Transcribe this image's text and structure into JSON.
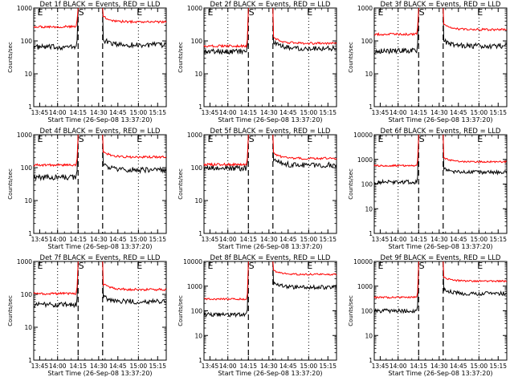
{
  "chart_data": [
    {
      "type": "line",
      "title": "Det 1f BLACK = Events, RED = LLD",
      "xlabel": "Start Time (26-Sep-08 13:37:20)",
      "ylabel": "Counts/sec",
      "yscale": "log",
      "ylim": [
        1,
        1000
      ],
      "yticks": [
        "1",
        "10",
        "100",
        "1000"
      ],
      "xticks": [
        "13:45",
        "14:00",
        "14:15",
        "14:30",
        "14:45",
        "15:00",
        "15:15"
      ],
      "markers": [
        "E",
        "S",
        "E"
      ],
      "series": [
        {
          "name": "Events",
          "color": "#000000",
          "pre": 65,
          "post": 75
        },
        {
          "name": "LLD",
          "color": "#ff0000",
          "pre": 270,
          "post": 380
        }
      ]
    },
    {
      "type": "line",
      "title": "Det 2f BLACK = Events, RED = LLD",
      "xlabel": "Start Time (26-Sep-08 13:37:20)",
      "ylabel": "Counts/sec",
      "yscale": "log",
      "ylim": [
        1,
        1000
      ],
      "yticks": [
        "1",
        "10",
        "100",
        "1000"
      ],
      "xticks": [
        "13:45",
        "14:00",
        "14:15",
        "14:30",
        "14:45",
        "15:00",
        "15:15"
      ],
      "markers": [
        "E",
        "S",
        "E"
      ],
      "series": [
        {
          "name": "Events",
          "color": "#000000",
          "pre": 48,
          "post": 60
        },
        {
          "name": "LLD",
          "color": "#ff0000",
          "pre": 70,
          "post": 85
        }
      ]
    },
    {
      "type": "line",
      "title": "Det 3f BLACK = Events, RED = LLD",
      "xlabel": "Start Time (26-Sep-08 13:37:20)",
      "ylabel": "Counts/sec",
      "yscale": "log",
      "ylim": [
        1,
        1000
      ],
      "yticks": [
        "1",
        "10",
        "100",
        "1000"
      ],
      "xticks": [
        "13:45",
        "14:00",
        "14:15",
        "14:30",
        "14:45",
        "15:00",
        "15:15"
      ],
      "markers": [
        "E",
        "S",
        "E"
      ],
      "series": [
        {
          "name": "Events",
          "color": "#000000",
          "pre": 50,
          "post": 70
        },
        {
          "name": "LLD",
          "color": "#ff0000",
          "pre": 160,
          "post": 220
        }
      ]
    },
    {
      "type": "line",
      "title": "Det 4f BLACK = Events, RED = LLD",
      "xlabel": "Start Time (26-Sep-08 13:37:20)",
      "ylabel": "Counts/sec",
      "yscale": "log",
      "ylim": [
        1,
        1000
      ],
      "yticks": [
        "1",
        "10",
        "100",
        "1000"
      ],
      "xticks": [
        "13:45",
        "14:00",
        "14:15",
        "14:30",
        "14:45",
        "15:00",
        "15:15"
      ],
      "markers": [
        "E",
        "S",
        "E"
      ],
      "series": [
        {
          "name": "Events",
          "color": "#000000",
          "pre": 50,
          "post": 85
        },
        {
          "name": "LLD",
          "color": "#ff0000",
          "pre": 120,
          "post": 210
        }
      ]
    },
    {
      "type": "line",
      "title": "Det 5f BLACK = Events, RED = LLD",
      "xlabel": "Start Time (26-Sep-08 13:37:20)",
      "ylabel": "Counts/sec",
      "yscale": "log",
      "ylim": [
        1,
        1000
      ],
      "yticks": [
        "1",
        "10",
        "100",
        "1000"
      ],
      "xticks": [
        "13:45",
        "14:00",
        "14:15",
        "14:30",
        "14:45",
        "15:00",
        "15:15"
      ],
      "markers": [
        "E",
        "S",
        "E"
      ],
      "series": [
        {
          "name": "Events",
          "color": "#000000",
          "pre": 95,
          "post": 120
        },
        {
          "name": "LLD",
          "color": "#ff0000",
          "pre": 125,
          "post": 190
        }
      ]
    },
    {
      "type": "line",
      "title": "Det 6f BLACK = Events, RED = LLD",
      "xlabel": "Start Time (26-Sep-08 13:37:20)",
      "ylabel": "Counts/sec",
      "yscale": "log",
      "ylim": [
        1,
        10000
      ],
      "yticks": [
        "1",
        "10",
        "100",
        "1000",
        "10000"
      ],
      "xticks": [
        "13:45",
        "14:00",
        "14:15",
        "14:30",
        "14:45",
        "15:00",
        "15:15"
      ],
      "markers": [
        "E",
        "S",
        "E"
      ],
      "series": [
        {
          "name": "Events",
          "color": "#000000",
          "pre": 120,
          "post": 300
        },
        {
          "name": "LLD",
          "color": "#ff0000",
          "pre": 560,
          "post": 800
        }
      ]
    },
    {
      "type": "line",
      "title": "Det 7f BLACK = Events, RED = LLD",
      "xlabel": "Start Time (26-Sep-08 13:37:20)",
      "ylabel": "Counts/sec",
      "yscale": "log",
      "ylim": [
        1,
        1000
      ],
      "yticks": [
        "1",
        "10",
        "100",
        "1000"
      ],
      "xticks": [
        "13:45",
        "14:00",
        "14:15",
        "14:30",
        "14:45",
        "15:00",
        "15:15"
      ],
      "markers": [
        "E",
        "S",
        "E"
      ],
      "series": [
        {
          "name": "Events",
          "color": "#000000",
          "pre": 48,
          "post": 60
        },
        {
          "name": "LLD",
          "color": "#ff0000",
          "pre": 105,
          "post": 140
        }
      ]
    },
    {
      "type": "line",
      "title": "Det 8f BLACK = Events, RED = LLD",
      "xlabel": "Start Time (26-Sep-08 13:37:20)",
      "ylabel": "Counts/sec",
      "yscale": "log",
      "ylim": [
        1,
        10000
      ],
      "yticks": [
        "1",
        "10",
        "100",
        "1000",
        "10000"
      ],
      "xticks": [
        "13:45",
        "14:00",
        "14:15",
        "14:30",
        "14:45",
        "15:00",
        "15:15"
      ],
      "markers": [
        "E",
        "S",
        "E"
      ],
      "series": [
        {
          "name": "Events",
          "color": "#000000",
          "pre": 70,
          "post": 900
        },
        {
          "name": "LLD",
          "color": "#ff0000",
          "pre": 300,
          "post": 3000
        }
      ]
    },
    {
      "type": "line",
      "title": "Det 9f BLACK = Events, RED = LLD",
      "xlabel": "Start Time (26-Sep-08 13:37:20)",
      "ylabel": "Counts/sec",
      "yscale": "log",
      "ylim": [
        1,
        10000
      ],
      "yticks": [
        "1",
        "10",
        "100",
        "1000",
        "10000"
      ],
      "xticks": [
        "13:45",
        "14:00",
        "14:15",
        "14:30",
        "14:45",
        "15:00",
        "15:15"
      ],
      "markers": [
        "E",
        "S",
        "E"
      ],
      "series": [
        {
          "name": "Events",
          "color": "#000000",
          "pre": 100,
          "post": 500
        },
        {
          "name": "LLD",
          "color": "#ff0000",
          "pre": 350,
          "post": 1600
        }
      ]
    }
  ]
}
